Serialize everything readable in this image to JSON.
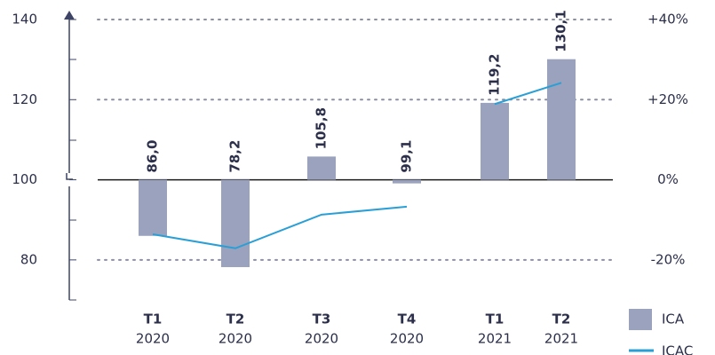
{
  "chart_data": {
    "type": "bar",
    "categories": [
      [
        "T1",
        "2020"
      ],
      [
        "T2",
        "2020"
      ],
      [
        "T3",
        "2020"
      ],
      [
        "T4",
        "2020"
      ],
      [
        "T1",
        "2021"
      ],
      [
        "T2",
        "2021"
      ]
    ],
    "series": [
      {
        "name": "ICA",
        "type": "bar",
        "color": "#9aa2bd",
        "values": [
          86.0,
          78.2,
          105.8,
          99.1,
          119.2,
          130.1
        ],
        "value_labels": [
          "86,0",
          "78,2",
          "105,8",
          "99,1",
          "119,2",
          "130,1"
        ]
      },
      {
        "name": "ICAC",
        "type": "line",
        "axis": "y2",
        "color": "#2a9fd6",
        "values": [
          -13.6,
          -17.1,
          -8.7,
          -6.7,
          18.9,
          24.2
        ]
      }
    ],
    "baseline": 100,
    "ylim": [
      70,
      140
    ],
    "yticks": [
      80,
      100,
      120,
      140
    ],
    "y2lim": [
      -30,
      40
    ],
    "y2ticks": [
      {
        "value": -20,
        "label": "-20%"
      },
      {
        "value": 0,
        "label": "0%"
      },
      {
        "value": 20,
        "label": "+20%"
      },
      {
        "value": 40,
        "label": "+40%"
      }
    ],
    "grid": true,
    "legend": "lower right"
  }
}
